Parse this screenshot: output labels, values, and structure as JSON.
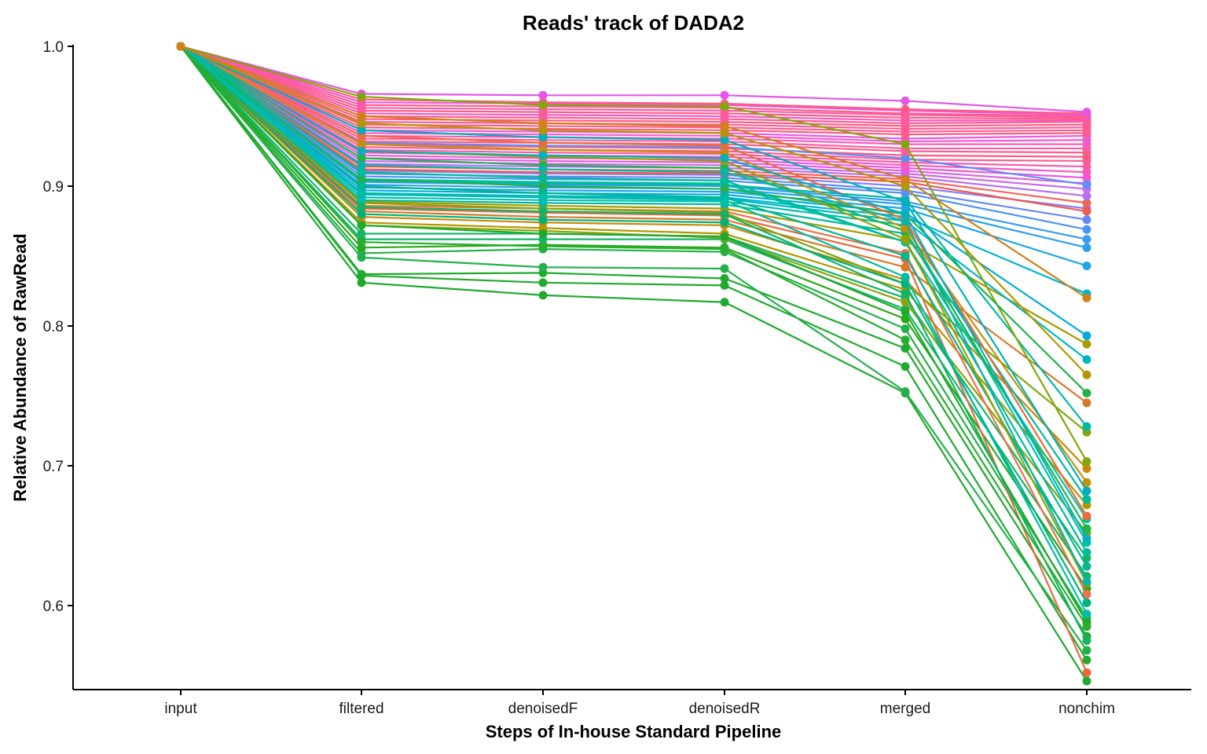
{
  "chart_data": {
    "type": "line",
    "title": "Reads' track of DADA2",
    "xlabel": "Steps of In-house Standard Pipeline",
    "ylabel": "Relative Abundance of RawRead",
    "categories": [
      "input",
      "filtered",
      "denoisedF",
      "denoisedR",
      "merged",
      "nonchim"
    ],
    "ylim": [
      0.54,
      1.0
    ],
    "yticks": [
      0.6,
      0.7,
      0.8,
      0.9,
      1.0
    ],
    "ytick_labels": [
      "0.6",
      "0.7",
      "0.8",
      "0.9",
      "1.0"
    ],
    "grid": false,
    "legend": "none",
    "series": [
      {
        "color": "#1faa2e",
        "values": [
          1.0,
          0.831,
          0.822,
          0.817,
          0.752,
          0.546
        ]
      },
      {
        "color": "#1faa2e",
        "values": [
          1.0,
          0.836,
          0.831,
          0.829,
          0.771,
          0.561
        ]
      },
      {
        "color": "#1faa2e",
        "values": [
          1.0,
          0.837,
          0.838,
          0.834,
          0.784,
          0.578
        ]
      },
      {
        "color": "#22b14c",
        "values": [
          1.0,
          0.849,
          0.842,
          0.841,
          0.753,
          0.568
        ]
      },
      {
        "color": "#22b14c",
        "values": [
          1.0,
          0.852,
          0.855,
          0.853,
          0.798,
          0.591
        ]
      },
      {
        "color": "#2aa81a",
        "values": [
          1.0,
          0.856,
          0.858,
          0.856,
          0.805,
          0.612
        ]
      },
      {
        "color": "#13b56a",
        "values": [
          1.0,
          0.862,
          0.862,
          0.862,
          0.812,
          0.621
        ]
      },
      {
        "color": "#13b56a",
        "values": [
          1.0,
          0.866,
          0.866,
          0.864,
          0.82,
          0.634
        ]
      },
      {
        "color": "#8da30a",
        "values": [
          1.0,
          0.872,
          0.868,
          0.863,
          0.817,
          0.652
        ]
      },
      {
        "color": "#b29800",
        "values": [
          1.0,
          0.874,
          0.87,
          0.866,
          0.826,
          0.672
        ]
      },
      {
        "color": "#c88a0d",
        "values": [
          1.0,
          0.878,
          0.874,
          0.872,
          0.833,
          0.698
        ]
      },
      {
        "color": "#d8792a",
        "values": [
          1.0,
          0.882,
          0.878,
          0.876,
          0.842,
          0.745
        ]
      },
      {
        "color": "#e8693f",
        "values": [
          1.0,
          0.884,
          0.881,
          0.879,
          0.848,
          0.552
        ]
      },
      {
        "color": "#f0704a",
        "values": [
          1.0,
          0.886,
          0.884,
          0.882,
          0.852,
          0.608
        ]
      },
      {
        "color": "#7fa80a",
        "values": [
          1.0,
          0.888,
          0.884,
          0.881,
          0.83,
          0.724
        ]
      },
      {
        "color": "#a69b00",
        "values": [
          1.0,
          0.889,
          0.886,
          0.884,
          0.861,
          0.787
        ]
      },
      {
        "color": "#00b9a2",
        "values": [
          1.0,
          0.89,
          0.888,
          0.887,
          0.866,
          0.676
        ]
      },
      {
        "color": "#00bfb0",
        "values": [
          1.0,
          0.892,
          0.89,
          0.889,
          0.872,
          0.645
        ]
      },
      {
        "color": "#00b6c4",
        "values": [
          1.0,
          0.894,
          0.892,
          0.891,
          0.875,
          0.776
        ]
      },
      {
        "color": "#00b5d2",
        "values": [
          1.0,
          0.895,
          0.893,
          0.892,
          0.878,
          0.823
        ]
      },
      {
        "color": "#00acdc",
        "values": [
          1.0,
          0.897,
          0.895,
          0.894,
          0.881,
          0.793
        ]
      },
      {
        "color": "#1ea5e8",
        "values": [
          1.0,
          0.899,
          0.897,
          0.896,
          0.884,
          0.843
        ]
      },
      {
        "color": "#2ca0ee",
        "values": [
          1.0,
          0.901,
          0.899,
          0.898,
          0.887,
          0.856
        ]
      },
      {
        "color": "#399cf2",
        "values": [
          1.0,
          0.903,
          0.901,
          0.9,
          0.889,
          0.862
        ]
      },
      {
        "color": "#00b9a2",
        "values": [
          1.0,
          0.904,
          0.902,
          0.901,
          0.891,
          0.728
        ]
      },
      {
        "color": "#00c2a0",
        "values": [
          1.0,
          0.905,
          0.903,
          0.902,
          0.86,
          0.662
        ]
      },
      {
        "color": "#4b94f5",
        "values": [
          1.0,
          0.907,
          0.905,
          0.904,
          0.895,
          0.869
        ]
      },
      {
        "color": "#6488f8",
        "values": [
          1.0,
          0.909,
          0.907,
          0.906,
          0.897,
          0.876
        ]
      },
      {
        "color": "#8a7ef8",
        "values": [
          1.0,
          0.911,
          0.909,
          0.908,
          0.9,
          0.884
        ]
      },
      {
        "color": "#f0594f",
        "values": [
          1.0,
          0.912,
          0.91,
          0.909,
          0.903,
          0.882
        ]
      },
      {
        "color": "#f3645a",
        "values": [
          1.0,
          0.914,
          0.912,
          0.911,
          0.905,
          0.888
        ]
      },
      {
        "color": "#b86ff2",
        "values": [
          1.0,
          0.916,
          0.914,
          0.913,
          0.907,
          0.893
        ]
      },
      {
        "color": "#cc66ee",
        "values": [
          1.0,
          0.918,
          0.916,
          0.915,
          0.909,
          0.898
        ]
      },
      {
        "color": "#e05de6",
        "values": [
          1.0,
          0.92,
          0.918,
          0.917,
          0.911,
          0.902
        ]
      },
      {
        "color": "#ef57d8",
        "values": [
          1.0,
          0.922,
          0.92,
          0.919,
          0.913,
          0.906
        ]
      },
      {
        "color": "#f657c2",
        "values": [
          1.0,
          0.924,
          0.922,
          0.921,
          0.915,
          0.91
        ]
      },
      {
        "color": "#fb5aa9",
        "values": [
          1.0,
          0.926,
          0.924,
          0.923,
          0.917,
          0.914
        ]
      },
      {
        "color": "#fd5c93",
        "values": [
          1.0,
          0.928,
          0.926,
          0.925,
          0.919,
          0.918
        ]
      },
      {
        "color": "#ff5a82",
        "values": [
          1.0,
          0.93,
          0.928,
          0.927,
          0.922,
          0.921
        ]
      },
      {
        "color": "#5e8ff6",
        "values": [
          1.0,
          0.931,
          0.929,
          0.928,
          0.92,
          0.901
        ]
      },
      {
        "color": "#ff5c8a",
        "values": [
          1.0,
          0.932,
          0.931,
          0.93,
          0.925,
          0.924
        ]
      },
      {
        "color": "#fd5da0",
        "values": [
          1.0,
          0.934,
          0.933,
          0.932,
          0.927,
          0.927
        ]
      },
      {
        "color": "#f85cb8",
        "values": [
          1.0,
          0.936,
          0.935,
          0.934,
          0.93,
          0.93
        ]
      },
      {
        "color": "#f25acd",
        "values": [
          1.0,
          0.938,
          0.937,
          0.936,
          0.932,
          0.933
        ]
      },
      {
        "color": "#e95ade",
        "values": [
          1.0,
          0.94,
          0.939,
          0.938,
          0.934,
          0.936
        ]
      },
      {
        "color": "#ff5a82",
        "values": [
          1.0,
          0.942,
          0.941,
          0.94,
          0.937,
          0.938
        ]
      },
      {
        "color": "#ff5c8f",
        "values": [
          1.0,
          0.944,
          0.943,
          0.942,
          0.939,
          0.94
        ]
      },
      {
        "color": "#fb5e9c",
        "values": [
          1.0,
          0.946,
          0.945,
          0.944,
          0.941,
          0.942
        ]
      },
      {
        "color": "#ff5a82",
        "values": [
          1.0,
          0.948,
          0.947,
          0.946,
          0.943,
          0.944
        ]
      },
      {
        "color": "#fd5c93",
        "values": [
          1.0,
          0.95,
          0.949,
          0.948,
          0.945,
          0.946
        ]
      },
      {
        "color": "#f657c2",
        "values": [
          1.0,
          0.952,
          0.951,
          0.95,
          0.947,
          0.947
        ]
      },
      {
        "color": "#ff5a82",
        "values": [
          1.0,
          0.954,
          0.953,
          0.952,
          0.949,
          0.948
        ]
      },
      {
        "color": "#fb5aa9",
        "values": [
          1.0,
          0.956,
          0.955,
          0.954,
          0.951,
          0.949
        ]
      },
      {
        "color": "#ff5c8a",
        "values": [
          1.0,
          0.958,
          0.957,
          0.956,
          0.952,
          0.95
        ]
      },
      {
        "color": "#ef57d8",
        "values": [
          1.0,
          0.96,
          0.959,
          0.958,
          0.954,
          0.951
        ]
      },
      {
        "color": "#ff5a82",
        "values": [
          1.0,
          0.962,
          0.96,
          0.959,
          0.955,
          0.952
        ]
      },
      {
        "color": "#e455ea",
        "values": [
          1.0,
          0.966,
          0.965,
          0.965,
          0.961,
          0.953
        ]
      },
      {
        "color": "#7fa80a",
        "values": [
          1.0,
          0.964,
          0.958,
          0.957,
          0.93,
          0.703
        ]
      },
      {
        "color": "#22b14c",
        "values": [
          1.0,
          0.905,
          0.9,
          0.898,
          0.88,
          0.752
        ]
      },
      {
        "color": "#1faa2e",
        "values": [
          1.0,
          0.872,
          0.866,
          0.864,
          0.81,
          0.588
        ]
      },
      {
        "color": "#00b27a",
        "values": [
          1.0,
          0.88,
          0.876,
          0.874,
          0.83,
          0.602
        ]
      },
      {
        "color": "#00b88d",
        "values": [
          1.0,
          0.9,
          0.895,
          0.892,
          0.85,
          0.628
        ]
      },
      {
        "color": "#00bc98",
        "values": [
          1.0,
          0.91,
          0.906,
          0.904,
          0.86,
          0.638
        ]
      },
      {
        "color": "#1fb545",
        "values": [
          1.0,
          0.92,
          0.915,
          0.913,
          0.868,
          0.655
        ]
      },
      {
        "color": "#99a000",
        "values": [
          1.0,
          0.925,
          0.921,
          0.918,
          0.862,
          0.616
        ]
      },
      {
        "color": "#c4900b",
        "values": [
          1.0,
          0.93,
          0.926,
          0.924,
          0.87,
          0.688
        ]
      },
      {
        "color": "#ed6a3c",
        "values": [
          1.0,
          0.936,
          0.931,
          0.929,
          0.876,
          0.664
        ]
      },
      {
        "color": "#00b0b8",
        "values": [
          1.0,
          0.94,
          0.935,
          0.933,
          0.889,
          0.682
        ]
      },
      {
        "color": "#00bda6",
        "values": [
          1.0,
          0.895,
          0.892,
          0.89,
          0.835,
          0.594
        ]
      },
      {
        "color": "#14b364",
        "values": [
          1.0,
          0.885,
          0.882,
          0.88,
          0.823,
          0.575
        ]
      },
      {
        "color": "#29ad2f",
        "values": [
          1.0,
          0.86,
          0.857,
          0.855,
          0.79,
          0.585
        ]
      },
      {
        "color": "#0cb3a8",
        "values": [
          1.0,
          0.915,
          0.912,
          0.91,
          0.875,
          0.617
        ]
      },
      {
        "color": "#05b0c0",
        "values": [
          1.0,
          0.925,
          0.922,
          0.92,
          0.88,
          0.648
        ]
      },
      {
        "color": "#b29800",
        "values": [
          1.0,
          0.945,
          0.94,
          0.938,
          0.9,
          0.765
        ]
      },
      {
        "color": "#d08118",
        "values": [
          1.0,
          0.95,
          0.945,
          0.943,
          0.905,
          0.82
        ]
      }
    ]
  }
}
